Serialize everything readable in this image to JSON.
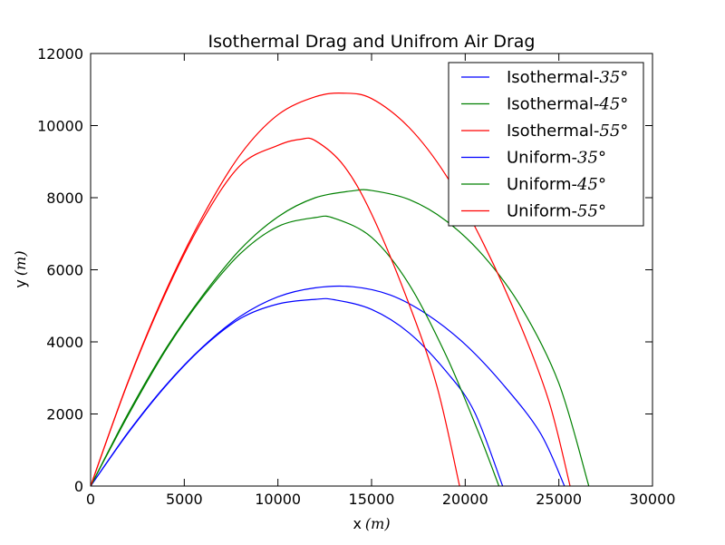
{
  "chart_data": {
    "type": "line",
    "title": "Isothermal Drag and Unifrom Air Drag",
    "xlabel": "x",
    "xlabel_unit": "(m)",
    "ylabel": "y",
    "ylabel_unit": "(m)",
    "xlim": [
      0,
      30000
    ],
    "ylim": [
      0,
      12000
    ],
    "xticks": [
      0,
      5000,
      10000,
      15000,
      20000,
      25000,
      30000
    ],
    "yticks": [
      0,
      2000,
      4000,
      6000,
      8000,
      10000,
      12000
    ],
    "xtick_labels": [
      "0",
      "5000",
      "10000",
      "15000",
      "20000",
      "25000",
      "30000"
    ],
    "ytick_labels": [
      "0",
      "2000",
      "4000",
      "6000",
      "8000",
      "10000",
      "12000"
    ],
    "grid": false,
    "legend_position": "top-right",
    "series": [
      {
        "name": "Isothermal-35°",
        "label_text": "Isothermal-",
        "label_angle": "35°",
        "color": "#0000ff",
        "points": [
          [
            0,
            0
          ],
          [
            2000,
            1490
          ],
          [
            4000,
            2790
          ],
          [
            6000,
            3870
          ],
          [
            8000,
            4710
          ],
          [
            10000,
            5250
          ],
          [
            12000,
            5500
          ],
          [
            14000,
            5530
          ],
          [
            16000,
            5300
          ],
          [
            18000,
            4750
          ],
          [
            20000,
            3930
          ],
          [
            22000,
            2830
          ],
          [
            24000,
            1480
          ],
          [
            25300,
            0
          ]
        ]
      },
      {
        "name": "Isothermal-45°",
        "label_text": "Isothermal-",
        "label_angle": "45°",
        "color": "#008000",
        "points": [
          [
            0,
            0
          ],
          [
            2000,
            2010
          ],
          [
            4000,
            3800
          ],
          [
            6000,
            5300
          ],
          [
            8000,
            6570
          ],
          [
            10000,
            7470
          ],
          [
            12000,
            8000
          ],
          [
            14000,
            8190
          ],
          [
            15000,
            8200
          ],
          [
            17000,
            7950
          ],
          [
            19000,
            7350
          ],
          [
            21000,
            6370
          ],
          [
            23000,
            4950
          ],
          [
            25000,
            2850
          ],
          [
            26600,
            0
          ]
        ]
      },
      {
        "name": "Isothermal-55°",
        "label_text": "Isothermal-",
        "label_angle": "55°",
        "color": "#ff0000",
        "points": [
          [
            0,
            0
          ],
          [
            2000,
            2900
          ],
          [
            4000,
            5400
          ],
          [
            6000,
            7500
          ],
          [
            8000,
            9200
          ],
          [
            10000,
            10300
          ],
          [
            12000,
            10800
          ],
          [
            13500,
            10900
          ],
          [
            15000,
            10750
          ],
          [
            17000,
            9950
          ],
          [
            19000,
            8600
          ],
          [
            21000,
            6700
          ],
          [
            23000,
            4400
          ],
          [
            24500,
            2300
          ],
          [
            25600,
            0
          ]
        ]
      },
      {
        "name": "Uniform-35°",
        "label_text": "Uniform-",
        "label_angle": "35°",
        "color": "#0000ff",
        "points": [
          [
            0,
            0
          ],
          [
            2000,
            1470
          ],
          [
            4000,
            2770
          ],
          [
            6000,
            3850
          ],
          [
            8000,
            4650
          ],
          [
            10000,
            5050
          ],
          [
            12000,
            5180
          ],
          [
            13000,
            5170
          ],
          [
            15000,
            4900
          ],
          [
            17000,
            4250
          ],
          [
            19000,
            3170
          ],
          [
            20500,
            2050
          ],
          [
            22000,
            0
          ]
        ]
      },
      {
        "name": "Uniform-45°",
        "label_text": "Uniform-",
        "label_angle": "45°",
        "color": "#008000",
        "points": [
          [
            0,
            0
          ],
          [
            2000,
            1960
          ],
          [
            4000,
            3760
          ],
          [
            6000,
            5250
          ],
          [
            8000,
            6450
          ],
          [
            10000,
            7200
          ],
          [
            12000,
            7450
          ],
          [
            13000,
            7430
          ],
          [
            15000,
            6900
          ],
          [
            17000,
            5600
          ],
          [
            19000,
            3600
          ],
          [
            20700,
            1500
          ],
          [
            21800,
            0
          ]
        ]
      },
      {
        "name": "Uniform-55°",
        "label_text": "Uniform-",
        "label_angle": "55°",
        "color": "#ff0000",
        "points": [
          [
            0,
            0
          ],
          [
            2000,
            2880
          ],
          [
            4000,
            5350
          ],
          [
            6000,
            7400
          ],
          [
            8000,
            8900
          ],
          [
            10000,
            9450
          ],
          [
            11200,
            9620
          ],
          [
            12000,
            9580
          ],
          [
            13500,
            8900
          ],
          [
            15000,
            7550
          ],
          [
            17000,
            5050
          ],
          [
            18500,
            2750
          ],
          [
            19700,
            0
          ]
        ]
      }
    ]
  }
}
